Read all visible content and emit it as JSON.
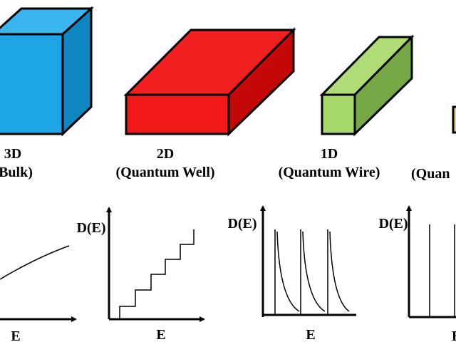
{
  "panels": [
    {
      "dimension": "3D",
      "label": "Bulk)"
    },
    {
      "dimension": "2D",
      "label": "(Quantum Well)"
    },
    {
      "dimension": "1D",
      "label": "(Quantum Wire)"
    },
    {
      "label": "(Quan"
    }
  ],
  "graphs": [
    {
      "x_label": "E"
    },
    {
      "y_label": "D(E)",
      "x_label": "E"
    },
    {
      "y_label": "D(E)",
      "x_label": "E"
    },
    {
      "y_label": "D(E)",
      "x_label": "E"
    }
  ]
}
